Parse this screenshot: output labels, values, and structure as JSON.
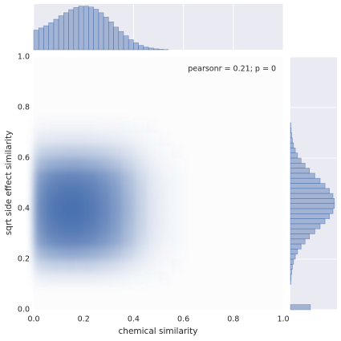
{
  "chart_data": [
    {
      "type": "heatmap",
      "xlabel": "chemical similarity",
      "ylabel": "sqrt side effect similarity",
      "annotation": "pearsonr = 0.21; p = 0",
      "color": "#4c72b0",
      "xlim": [
        0,
        1
      ],
      "ylim": [
        0,
        1
      ],
      "xticks": [
        {
          "value": 0,
          "label": "0.0"
        },
        {
          "value": 0.2,
          "label": "0.2"
        },
        {
          "value": 0.4,
          "label": "0.4"
        },
        {
          "value": 0.6,
          "label": "0.6"
        },
        {
          "value": 0.8,
          "label": "0.8"
        },
        {
          "value": 1,
          "label": "1.0"
        }
      ],
      "yticks": [
        {
          "value": 0,
          "label": "0.0"
        },
        {
          "value": 0.2,
          "label": "0.2"
        },
        {
          "value": 0.4,
          "label": "0.4"
        },
        {
          "value": 0.6,
          "label": "0.6"
        },
        {
          "value": 0.8,
          "label": "0.8"
        },
        {
          "value": 1,
          "label": "1.0"
        }
      ],
      "x_edges": [
        0,
        0.05,
        0.1,
        0.15,
        0.2,
        0.25,
        0.3,
        0.35,
        0.4,
        0.45,
        0.5,
        0.55,
        0.6
      ],
      "y_edges": [
        0.1,
        0.15,
        0.2,
        0.25,
        0.3,
        0.35,
        0.4,
        0.45,
        0.5,
        0.55,
        0.6,
        0.65,
        0.7,
        0.75
      ],
      "values": [
        [
          0.08,
          0.1,
          0.1,
          0.1,
          0.1,
          0.09,
          0.07,
          0.05,
          0.03,
          0.02,
          0.01,
          0
        ],
        [
          0.24,
          0.29,
          0.3,
          0.3,
          0.29,
          0.26,
          0.21,
          0.15,
          0.09,
          0.05,
          0.02,
          0.01
        ],
        [
          0.48,
          0.57,
          0.6,
          0.6,
          0.57,
          0.51,
          0.42,
          0.3,
          0.18,
          0.09,
          0.04,
          0.02
        ],
        [
          0.68,
          0.81,
          0.85,
          0.85,
          0.81,
          0.72,
          0.6,
          0.43,
          0.26,
          0.13,
          0.06,
          0.03
        ],
        [
          0.76,
          0.9,
          0.95,
          0.95,
          0.9,
          0.81,
          0.67,
          0.48,
          0.29,
          0.14,
          0.07,
          0.03
        ],
        [
          0.8,
          0.95,
          1,
          1,
          0.95,
          0.85,
          0.7,
          0.5,
          0.3,
          0.15,
          0.07,
          0.03
        ],
        [
          0.8,
          0.95,
          1,
          1,
          0.95,
          0.85,
          0.7,
          0.5,
          0.3,
          0.15,
          0.07,
          0.03
        ],
        [
          0.76,
          0.9,
          0.95,
          0.95,
          0.9,
          0.81,
          0.67,
          0.48,
          0.29,
          0.14,
          0.07,
          0.03
        ],
        [
          0.68,
          0.81,
          0.85,
          0.85,
          0.81,
          0.72,
          0.6,
          0.43,
          0.26,
          0.13,
          0.06,
          0.03
        ],
        [
          0.48,
          0.57,
          0.6,
          0.6,
          0.57,
          0.51,
          0.42,
          0.3,
          0.18,
          0.09,
          0.04,
          0.02
        ],
        [
          0.28,
          0.33,
          0.35,
          0.35,
          0.33,
          0.3,
          0.25,
          0.18,
          0.11,
          0.05,
          0.02,
          0.01
        ],
        [
          0.12,
          0.14,
          0.15,
          0.15,
          0.14,
          0.13,
          0.11,
          0.08,
          0.05,
          0.02,
          0.01,
          0
        ],
        [
          0.04,
          0.05,
          0.05,
          0.05,
          0.05,
          0.04,
          0.04,
          0.03,
          0.02,
          0.01,
          0,
          0
        ]
      ]
    },
    {
      "type": "histogram",
      "orientation": "vertical",
      "color": "#4c72b0",
      "xlim": [
        0,
        1
      ],
      "ylim": [
        0,
        1.05
      ],
      "xticks": [
        0,
        0.2,
        0.4,
        0.6,
        0.8,
        1
      ],
      "grid": true,
      "bins": [
        0,
        0.02,
        0.04,
        0.06,
        0.08,
        0.1,
        0.12,
        0.14,
        0.16,
        0.18,
        0.2,
        0.22,
        0.24,
        0.26,
        0.28,
        0.3,
        0.32,
        0.34,
        0.36,
        0.38,
        0.4,
        0.42,
        0.44,
        0.46,
        0.48,
        0.5,
        0.52,
        0.54
      ],
      "values": [
        0.45,
        0.5,
        0.55,
        0.62,
        0.7,
        0.78,
        0.85,
        0.92,
        0.97,
        1,
        1,
        0.98,
        0.93,
        0.85,
        0.75,
        0.64,
        0.52,
        0.42,
        0.32,
        0.23,
        0.16,
        0.1,
        0.06,
        0.04,
        0.02,
        0.01,
        0.005
      ]
    },
    {
      "type": "histogram",
      "orientation": "horizontal",
      "color": "#4c72b0",
      "ylim": [
        0,
        1
      ],
      "xlim": [
        0,
        1.05
      ],
      "yticks": [
        0,
        0.2,
        0.4,
        0.6,
        0.8,
        1
      ],
      "grid": true,
      "bins": [
        0,
        0.02,
        0.04,
        0.06,
        0.08,
        0.1,
        0.12,
        0.14,
        0.16,
        0.18,
        0.2,
        0.22,
        0.24,
        0.26,
        0.28,
        0.3,
        0.32,
        0.34,
        0.36,
        0.38,
        0.4,
        0.42,
        0.44,
        0.46,
        0.48,
        0.5,
        0.52,
        0.54,
        0.56,
        0.58,
        0.6,
        0.62,
        0.64,
        0.66,
        0.68,
        0.7,
        0.72,
        0.74
      ],
      "values": [
        0.45,
        0,
        0,
        0,
        0,
        0.008,
        0.015,
        0.027,
        0.044,
        0.07,
        0.11,
        0.16,
        0.24,
        0.33,
        0.43,
        0.55,
        0.67,
        0.78,
        0.88,
        0.96,
        0.99,
        0.99,
        0.96,
        0.88,
        0.78,
        0.67,
        0.55,
        0.43,
        0.33,
        0.24,
        0.16,
        0.11,
        0.07,
        0.044,
        0.027,
        0.015,
        0.008
      ]
    }
  ]
}
